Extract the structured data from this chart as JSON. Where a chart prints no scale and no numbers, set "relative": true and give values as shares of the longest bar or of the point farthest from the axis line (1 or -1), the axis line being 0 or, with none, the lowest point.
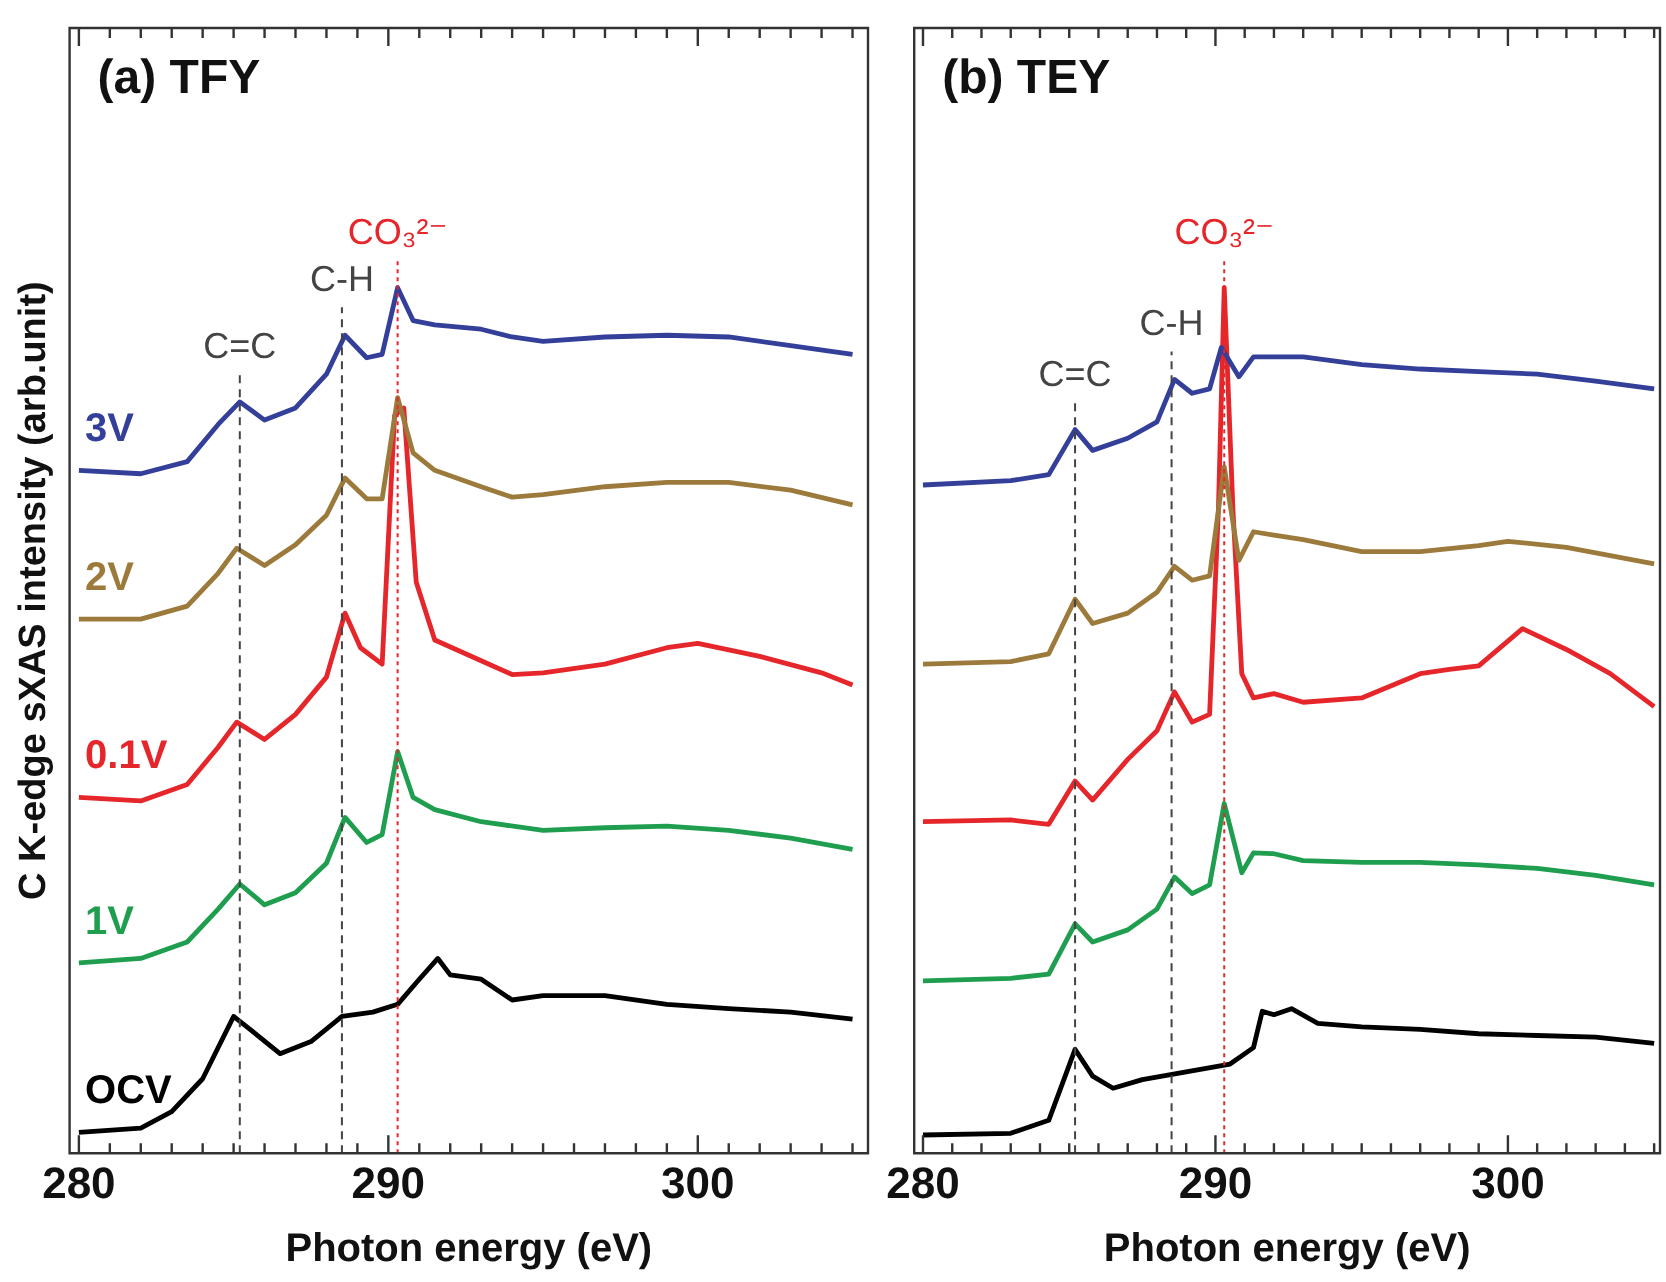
{
  "chart_data": [
    {
      "type": "line",
      "title": "(a) TFY",
      "xlabel": "Photon energy (eV)",
      "ylabel": "C K-edge sXAS intensity (arb.unit)",
      "relative": true,
      "grid": false,
      "legend": false,
      "tick_labels": "x",
      "marker": "none",
      "line_style": "solid",
      "xlim": [
        279.7,
        305.5
      ],
      "xticks": [
        280,
        {
          "value": 281,
          "label": null
        },
        {
          "value": 282,
          "label": null
        },
        {
          "value": 283,
          "label": null
        },
        {
          "value": 284,
          "label": null
        },
        {
          "value": 285,
          "label": null
        },
        {
          "value": 286,
          "label": null
        },
        {
          "value": 287,
          "label": null
        },
        {
          "value": 288,
          "label": null
        },
        {
          "value": 289,
          "label": null
        },
        290,
        {
          "value": 291,
          "label": null
        },
        {
          "value": 292,
          "label": null
        },
        {
          "value": 293,
          "label": null
        },
        {
          "value": 294,
          "label": null
        },
        {
          "value": 295,
          "label": null
        },
        {
          "value": 296,
          "label": null
        },
        {
          "value": 297,
          "label": null
        },
        {
          "value": 298,
          "label": null
        },
        {
          "value": 299,
          "label": null
        },
        300,
        {
          "value": 301,
          "label": null
        },
        {
          "value": 302,
          "label": null
        },
        {
          "value": 303,
          "label": null
        },
        {
          "value": 304,
          "label": null
        },
        {
          "value": 305,
          "label": null
        }
      ],
      "ref_lines": [
        {
          "axis": "x",
          "value": 285.2,
          "label": "C=C",
          "color": "#444444",
          "line_style": "dashed"
        },
        {
          "axis": "x",
          "value": 288.5,
          "label": "C-H",
          "color": "#444444",
          "line_style": "dashed"
        },
        {
          "axis": "x",
          "value": 290.3,
          "label": "CO₃²⁻",
          "color": "#e5262b",
          "line_style": "dotted"
        }
      ],
      "series": [
        {
          "name": "3V",
          "color": "#333f99",
          "x": [
            280,
            282,
            283.5,
            284.5,
            285.2,
            286,
            287,
            288,
            288.6,
            289.3,
            289.8,
            290.3,
            290.8,
            291.5,
            293,
            294,
            295,
            297,
            299,
            301,
            303,
            305
          ],
          "values": [
            0.789,
            0.785,
            0.799,
            0.842,
            0.868,
            0.847,
            0.861,
            0.9,
            0.945,
            0.919,
            0.923,
            1,
            0.962,
            0.957,
            0.952,
            0.943,
            0.938,
            0.943,
            0.945,
            0.943,
            0.933,
            0.923
          ]
        },
        {
          "name": "2V",
          "color": "#9c7a3c",
          "x": [
            280,
            282,
            283.5,
            284.5,
            285.1,
            286,
            287,
            288,
            288.6,
            289.3,
            289.8,
            290.3,
            290.8,
            291.5,
            293,
            294,
            295,
            297,
            299,
            301,
            303,
            305
          ],
          "values": [
            0.617,
            0.617,
            0.632,
            0.67,
            0.699,
            0.679,
            0.703,
            0.737,
            0.78,
            0.756,
            0.756,
            0.873,
            0.809,
            0.789,
            0.77,
            0.758,
            0.761,
            0.77,
            0.775,
            0.775,
            0.766,
            0.749
          ]
        },
        {
          "name": "0.1V",
          "color": "#e5262b",
          "x": [
            280,
            282,
            283.5,
            284.5,
            285.1,
            286,
            287,
            288,
            288.6,
            289.1,
            289.8,
            290.2,
            290.5,
            290.9,
            291.5,
            293,
            294,
            295,
            297,
            299,
            300,
            302,
            304,
            305
          ],
          "values": [
            0.411,
            0.407,
            0.426,
            0.469,
            0.498,
            0.478,
            0.507,
            0.55,
            0.624,
            0.584,
            0.565,
            0.852,
            0.861,
            0.66,
            0.593,
            0.569,
            0.553,
            0.555,
            0.565,
            0.584,
            0.589,
            0.574,
            0.555,
            0.541
          ]
        },
        {
          "name": "1V",
          "color": "#1f9e4f",
          "x": [
            280,
            282,
            283.5,
            284.5,
            285.2,
            286,
            287,
            288,
            288.6,
            289.3,
            289.8,
            290.3,
            290.8,
            291.5,
            293,
            295,
            297,
            299,
            301,
            303,
            305
          ],
          "values": [
            0.22,
            0.225,
            0.244,
            0.282,
            0.311,
            0.287,
            0.301,
            0.335,
            0.388,
            0.359,
            0.368,
            0.464,
            0.411,
            0.397,
            0.383,
            0.373,
            0.376,
            0.378,
            0.373,
            0.364,
            0.351
          ]
        },
        {
          "name": "OCV",
          "color": "#000000",
          "x": [
            280,
            282,
            283,
            284,
            285,
            285.5,
            286.5,
            287.5,
            288.5,
            289.5,
            290.3,
            291,
            291.6,
            292,
            293,
            294,
            295,
            297,
            299,
            301,
            303,
            305
          ],
          "values": [
            0.024,
            0.029,
            0.048,
            0.086,
            0.158,
            0.144,
            0.115,
            0.129,
            0.158,
            0.163,
            0.172,
            0.201,
            0.225,
            0.206,
            0.201,
            0.177,
            0.182,
            0.182,
            0.172,
            0.167,
            0.163,
            0.155
          ]
        }
      ]
    },
    {
      "type": "line",
      "title": "(b) TEY",
      "xlabel": "Photon energy (eV)",
      "relative": true,
      "grid": false,
      "legend": false,
      "tick_labels": "x",
      "marker": "none",
      "line_style": "solid",
      "xlim": [
        279.7,
        305.2
      ],
      "xticks": [
        280,
        {
          "value": 281,
          "label": null
        },
        {
          "value": 282,
          "label": null
        },
        {
          "value": 283,
          "label": null
        },
        {
          "value": 284,
          "label": null
        },
        {
          "value": 285,
          "label": null
        },
        {
          "value": 286,
          "label": null
        },
        {
          "value": 287,
          "label": null
        },
        {
          "value": 288,
          "label": null
        },
        {
          "value": 289,
          "label": null
        },
        290,
        {
          "value": 291,
          "label": null
        },
        {
          "value": 292,
          "label": null
        },
        {
          "value": 293,
          "label": null
        },
        {
          "value": 294,
          "label": null
        },
        {
          "value": 295,
          "label": null
        },
        {
          "value": 296,
          "label": null
        },
        {
          "value": 297,
          "label": null
        },
        {
          "value": 298,
          "label": null
        },
        {
          "value": 299,
          "label": null
        },
        300,
        {
          "value": 301,
          "label": null
        },
        {
          "value": 302,
          "label": null
        },
        {
          "value": 303,
          "label": null
        },
        {
          "value": 304,
          "label": null
        },
        {
          "value": 305,
          "label": null
        }
      ],
      "ref_lines": [
        {
          "axis": "x",
          "value": 285.2,
          "label": "C=C",
          "color": "#444444",
          "line_style": "dashed"
        },
        {
          "axis": "x",
          "value": 288.5,
          "label": "C-H",
          "color": "#444444",
          "line_style": "dashed"
        },
        {
          "axis": "x",
          "value": 290.3,
          "label": "CO₃²⁻",
          "color": "#e5262b",
          "line_style": "dotted"
        }
      ],
      "series": [
        {
          "color": "#333f99",
          "x": [
            280,
            283,
            284.3,
            285.2,
            285.8,
            287,
            288,
            288.6,
            289.2,
            289.8,
            290.2,
            290.8,
            291.3,
            292,
            293,
            295,
            297,
            299,
            301,
            303,
            305
          ],
          "values": [
            0.772,
            0.777,
            0.784,
            0.836,
            0.812,
            0.826,
            0.845,
            0.894,
            0.878,
            0.883,
            0.931,
            0.897,
            0.92,
            0.92,
            0.92,
            0.911,
            0.906,
            0.903,
            0.9,
            0.892,
            0.883
          ]
        },
        {
          "color": "#9c7a3c",
          "x": [
            280,
            283,
            284.3,
            285.2,
            285.8,
            287,
            288,
            288.6,
            289.2,
            289.8,
            290.3,
            290.8,
            291.3,
            292,
            293,
            295,
            297,
            299,
            300,
            302,
            305
          ],
          "values": [
            0.565,
            0.568,
            0.577,
            0.64,
            0.612,
            0.624,
            0.648,
            0.678,
            0.662,
            0.667,
            0.793,
            0.685,
            0.718,
            0.714,
            0.709,
            0.695,
            0.695,
            0.702,
            0.707,
            0.7,
            0.681
          ]
        },
        {
          "color": "#e5262b",
          "x": [
            280,
            283,
            284.3,
            285.2,
            285.8,
            287,
            288,
            288.6,
            289.2,
            289.8,
            290.1,
            290.3,
            290.6,
            290.9,
            291.3,
            292,
            293,
            295,
            297,
            298,
            299,
            300.5,
            302,
            303.5,
            305
          ],
          "values": [
            0.383,
            0.385,
            0.38,
            0.43,
            0.408,
            0.455,
            0.488,
            0.533,
            0.498,
            0.507,
            0.742,
            1,
            0.742,
            0.554,
            0.526,
            0.531,
            0.521,
            0.526,
            0.554,
            0.559,
            0.563,
            0.606,
            0.582,
            0.554,
            0.516
          ]
        },
        {
          "color": "#1f9e4f",
          "x": [
            280,
            283,
            284.3,
            285.2,
            285.8,
            287,
            288,
            288.6,
            289.2,
            289.8,
            290.3,
            290.9,
            291.3,
            292,
            293,
            295,
            297,
            299,
            301,
            303,
            305
          ],
          "values": [
            0.199,
            0.202,
            0.207,
            0.265,
            0.244,
            0.258,
            0.282,
            0.319,
            0.3,
            0.31,
            0.404,
            0.324,
            0.347,
            0.346,
            0.338,
            0.336,
            0.336,
            0.333,
            0.329,
            0.321,
            0.31
          ]
        },
        {
          "color": "#000000",
          "x": [
            280,
            283,
            284.3,
            285.2,
            285.8,
            286.5,
            287.5,
            289,
            290.5,
            291.3,
            291.6,
            292,
            292.6,
            293.5,
            295,
            297,
            299,
            301,
            303,
            305
          ],
          "values": [
            0.021,
            0.023,
            0.038,
            0.12,
            0.089,
            0.075,
            0.085,
            0.094,
            0.103,
            0.122,
            0.164,
            0.16,
            0.167,
            0.15,
            0.146,
            0.143,
            0.138,
            0.136,
            0.134,
            0.127
          ]
        }
      ]
    }
  ]
}
